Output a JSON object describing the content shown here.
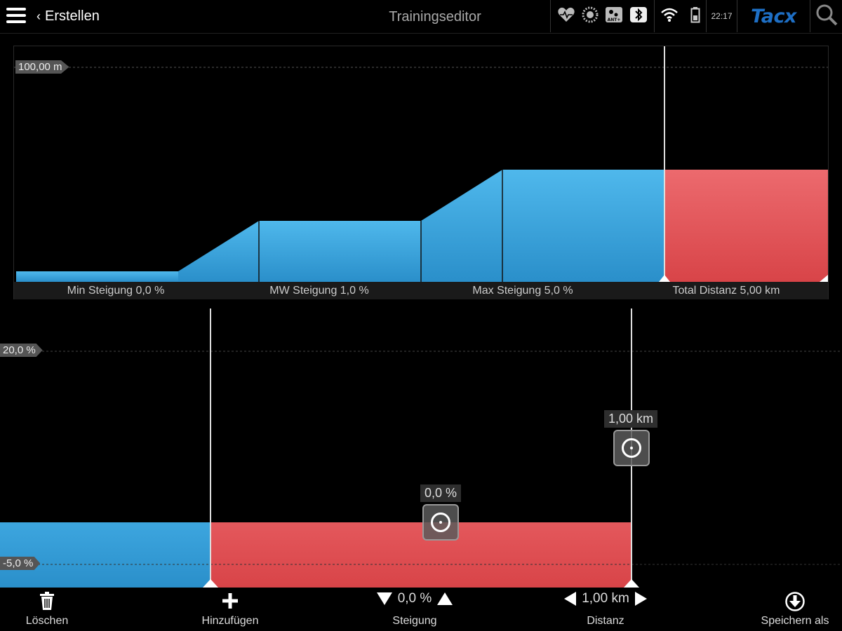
{
  "header": {
    "back_label": "Erstellen",
    "title": "Trainingseditor",
    "clock": "22:17",
    "logo": "Tacx",
    "status_icons": [
      "heart-rate-icon",
      "cadence-icon",
      "ant-plus-icon",
      "bluetooth-icon",
      "wifi-icon",
      "battery-icon"
    ]
  },
  "overview": {
    "y_max_label": "100,00 m",
    "stats": {
      "min_gradient": "Min Steigung 0,0 %",
      "avg_gradient": "MW Steigung 1,0 %",
      "max_gradient": "Max Steigung 5,0 %",
      "total_distance": "Total Distanz 5,00 km"
    },
    "colors": {
      "segment": "#3ba3dd",
      "selected": "#e05a5e"
    }
  },
  "editor": {
    "y_top_label": "20,0 %",
    "y_bottom_label": "-5,0 %",
    "gradient_value": "0,0 %",
    "distance_value": "1,00 km"
  },
  "chart_data": {
    "type": "area",
    "description": "elevation profile",
    "y_axis_max": "100,00 m",
    "segment_count": 5,
    "selected_segment": 5,
    "total_distance_km": 5.0
  },
  "toolbar": {
    "delete_label": "Löschen",
    "add_label": "Hinzufügen",
    "gradient_value": "0,0 %",
    "gradient_label": "Steigung",
    "distance_value": "1,00 km",
    "distance_label": "Distanz",
    "save_as_label": "Speichern als"
  }
}
